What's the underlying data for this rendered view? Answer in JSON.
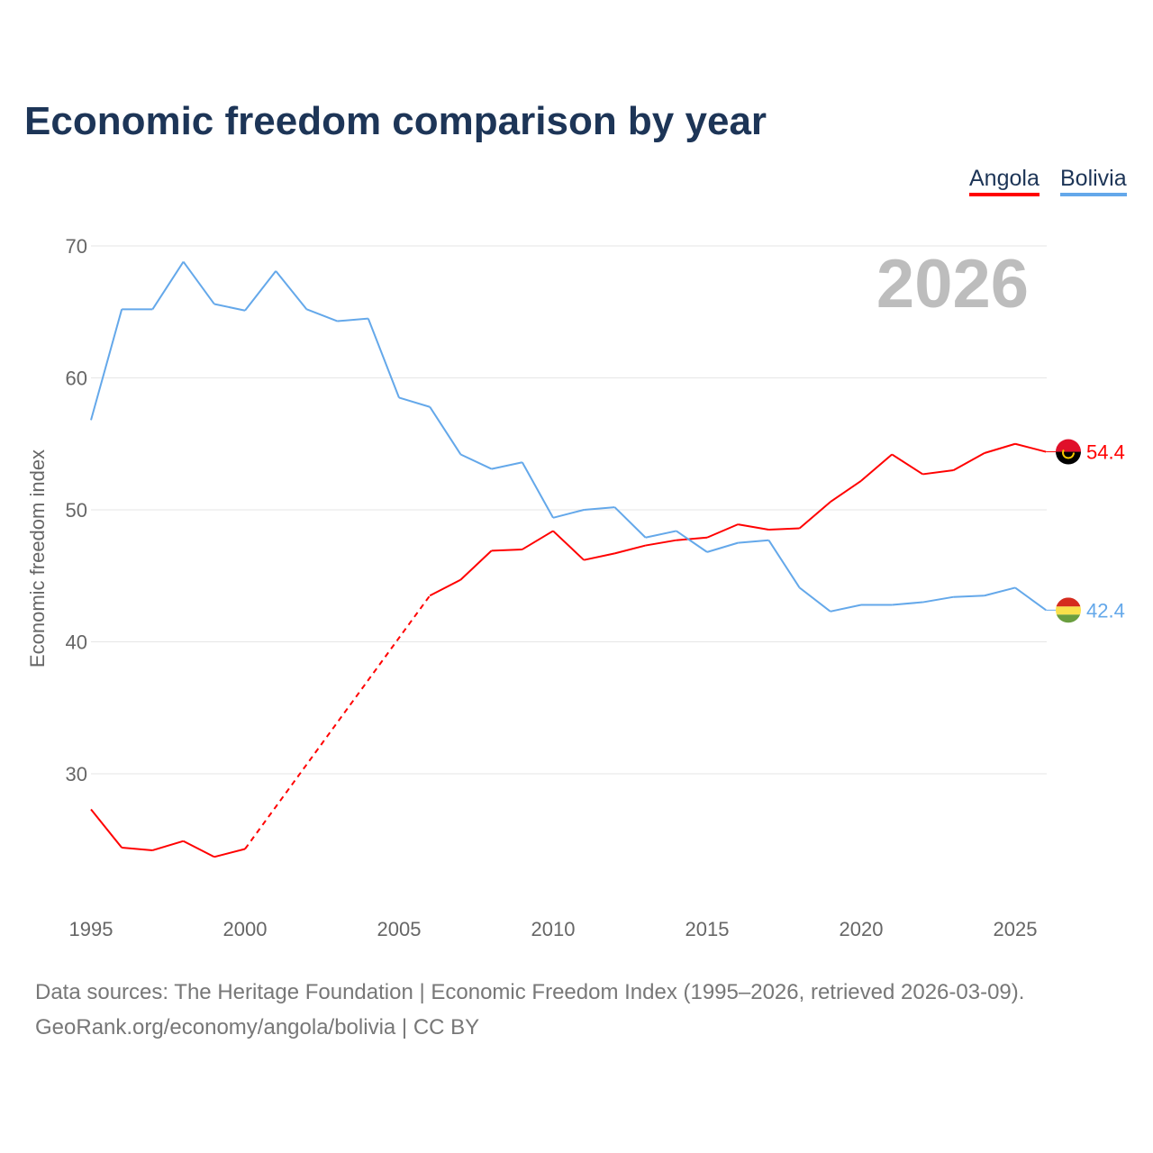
{
  "chart_data": {
    "type": "line",
    "title": "Economic freedom comparison by year",
    "ylabel": "Economic freedom index",
    "xlabel": "",
    "ylim": [
      20,
      70
    ],
    "xlim": [
      1995,
      2026
    ],
    "yticks": [
      30,
      40,
      50,
      60,
      70
    ],
    "xticks": [
      1995,
      2000,
      2005,
      2010,
      2015,
      2020,
      2025
    ],
    "grid": true,
    "legend_position": "top-right",
    "year_label": "2026",
    "x": [
      1995,
      1996,
      1997,
      1998,
      1999,
      2000,
      2001,
      2002,
      2003,
      2004,
      2005,
      2006,
      2007,
      2008,
      2009,
      2010,
      2011,
      2012,
      2013,
      2014,
      2015,
      2016,
      2017,
      2018,
      2019,
      2020,
      2021,
      2022,
      2023,
      2024,
      2025,
      2026
    ],
    "series": [
      {
        "name": "Angola",
        "color": "#ff0000",
        "end_label": "54.4",
        "flag": "angola",
        "values": [
          27.3,
          24.4,
          24.2,
          24.9,
          23.7,
          24.3,
          null,
          null,
          null,
          null,
          null,
          43.5,
          44.7,
          46.9,
          47.0,
          48.4,
          46.2,
          46.7,
          47.3,
          47.7,
          47.9,
          48.9,
          48.5,
          48.6,
          50.6,
          52.2,
          54.2,
          52.7,
          53.0,
          54.3,
          55.0,
          54.4
        ]
      },
      {
        "name": "Bolivia",
        "color": "#64a8ea",
        "end_label": "42.4",
        "flag": "bolivia",
        "values": [
          56.8,
          65.2,
          65.2,
          68.8,
          65.6,
          65.1,
          68.1,
          65.2,
          64.3,
          64.5,
          58.5,
          57.8,
          54.2,
          53.1,
          53.6,
          49.4,
          50.0,
          50.2,
          47.9,
          48.4,
          46.8,
          47.5,
          47.7,
          44.1,
          42.3,
          42.8,
          42.8,
          43.0,
          43.4,
          43.5,
          44.1,
          42.4
        ]
      }
    ]
  },
  "footer": {
    "line1": "Data sources: The Heritage Foundation | Economic Freedom Index (1995–2026, retrieved 2026-03-09).",
    "line2": "GeoRank.org/economy/angola/bolivia | CC BY"
  }
}
